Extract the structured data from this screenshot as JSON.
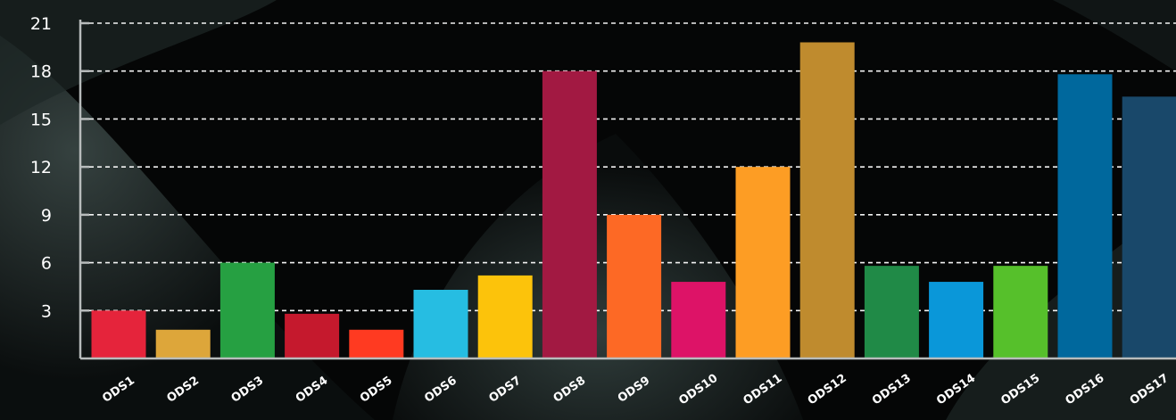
{
  "chart_data": {
    "type": "bar",
    "title": "",
    "xlabel": "",
    "ylabel": "",
    "ylim": [
      0,
      21
    ],
    "yticks": [
      3,
      6,
      9,
      12,
      15,
      18,
      21
    ],
    "grid": true,
    "categories": [
      "ODS1",
      "ODS2",
      "ODS3",
      "ODS4",
      "ODS5",
      "ODS6",
      "ODS7",
      "ODS8",
      "ODS9",
      "ODS10",
      "ODS11",
      "ODS12",
      "ODS13",
      "ODS14",
      "ODS15",
      "ODS16",
      "ODS17"
    ],
    "values": [
      3,
      1.8,
      6,
      2.8,
      1.8,
      4.3,
      5.2,
      18,
      9,
      4.8,
      12,
      19.8,
      5.8,
      4.8,
      5.8,
      17.8,
      16.4
    ],
    "colors": [
      "#e5243b",
      "#dda63a",
      "#26a042",
      "#c5192d",
      "#ff3a21",
      "#26bde2",
      "#fcc30b",
      "#a21942",
      "#fd6925",
      "#dd1367",
      "#fd9d24",
      "#bf8b2e",
      "#208a47",
      "#0a97d9",
      "#56c02b",
      "#00689d",
      "#19486a"
    ]
  }
}
